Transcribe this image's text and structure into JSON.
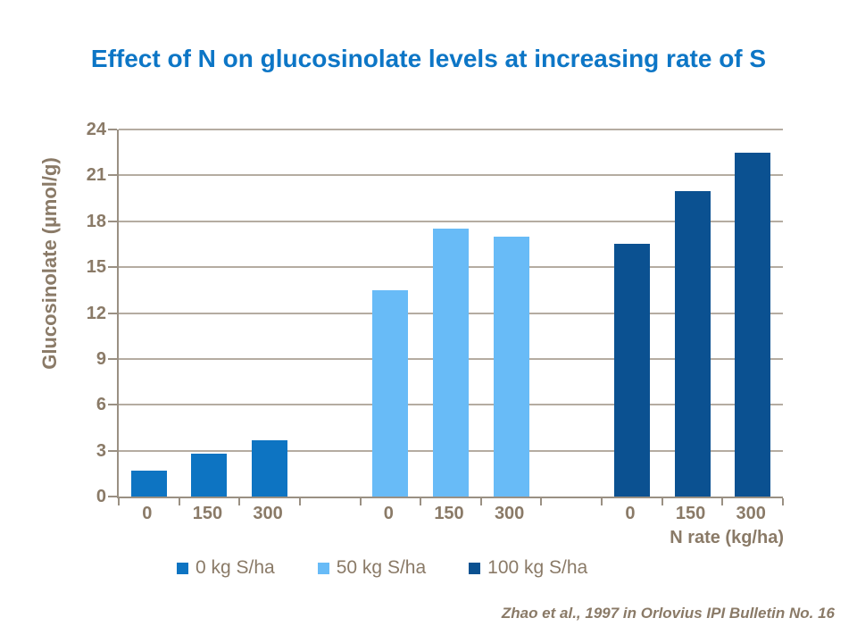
{
  "page": {
    "title": "Effect of N on glucosinolate levels at increasing rate of S",
    "source_citation": "Zhao et al., 1997 in Orlovius IPI Bulletin No. 16"
  },
  "colors": {
    "title_blue": "#0d76c6",
    "axis_text_brown": "#8a7a67",
    "gridline_gray": "#b5aca1",
    "axis_line_gray": "#9a9083",
    "series_0kg_blue": "#0d74c2",
    "series_50kg_lightblue": "#68bbf7",
    "series_100kg_darkblue": "#0b5191"
  },
  "chart_data": {
    "type": "bar",
    "title": "Effect of N on glucosinolate levels at increasing rate of S",
    "xlabel": "N rate (kg/ha)",
    "ylabel": "Glucosinolate (µmol/g)",
    "ylim": [
      0,
      24
    ],
    "yticks": [
      0,
      3,
      6,
      9,
      12,
      15,
      18,
      21,
      24
    ],
    "categories": [
      "0",
      "150",
      "300"
    ],
    "series": [
      {
        "name": "0 kg S/ha",
        "color": "#0d74c2",
        "values": [
          1.7,
          2.8,
          3.7
        ]
      },
      {
        "name": "50 kg S/ha",
        "color": "#68bbf7",
        "values": [
          13.5,
          17.5,
          17.0
        ]
      },
      {
        "name": "100 kg S/ha",
        "color": "#0b5191",
        "values": [
          16.5,
          20.0,
          22.5
        ]
      }
    ],
    "grid": true,
    "legend_position": "bottom",
    "source": "Zhao et al., 1997 in Orlovius IPI Bulletin No. 16"
  }
}
